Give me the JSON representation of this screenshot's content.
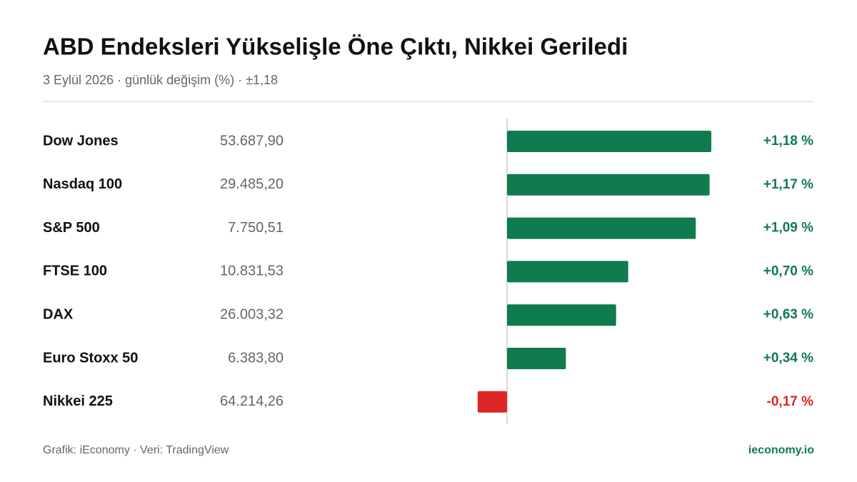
{
  "chart_data": {
    "type": "bar",
    "orientation": "horizontal",
    "title": "ABD Endeksleri Yükselişle Öne Çıktı, Nikkei Geriledi",
    "subtitle": "3 Eylül 2026 · günlük değişim (%) · ±1,18",
    "categories": [
      "Dow Jones",
      "Nasdaq 100",
      "S&P 500",
      "FTSE 100",
      "DAX",
      "Euro Stoxx 50",
      "Nikkei 225"
    ],
    "prices": [
      "53.687,90",
      "29.485,20",
      "7.750,51",
      "10.831,53",
      "26.003,32",
      "6.383,80",
      "64.214,26"
    ],
    "values": [
      1.18,
      1.17,
      1.09,
      0.7,
      0.63,
      0.34,
      -0.17
    ],
    "value_labels": [
      "+1,18 %",
      "+1,17 %",
      "+1,09 %",
      "+0,70 %",
      "+0,63 %",
      "+0,34 %",
      "-0,17 %"
    ],
    "xlim": [
      -1.18,
      1.18
    ],
    "positive_color": "#0f7b4f",
    "negative_color": "#dc2626",
    "source": "Grafik: iEconomy · Veri: TradingView",
    "brand": "ieconomy.io"
  }
}
